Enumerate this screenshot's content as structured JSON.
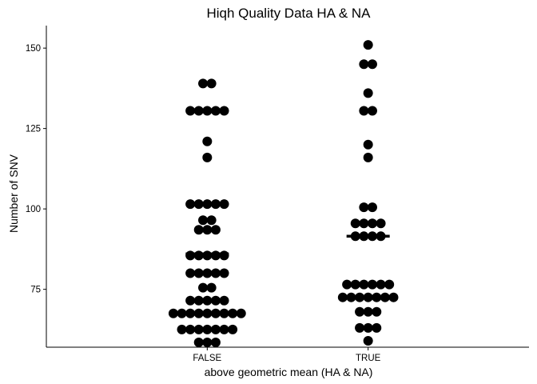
{
  "chart_data": {
    "type": "scatter",
    "title": "Hiqh Quality Data HA & NA",
    "xlabel": "above geometric mean  (HA & NA)",
    "ylabel": "Number of SNV",
    "categories": [
      "FALSE",
      "TRUE"
    ],
    "y_ticks": [
      75,
      100,
      125,
      150
    ],
    "ylim": [
      57,
      157
    ],
    "grid": false,
    "legend": "none",
    "point_color": "#000000",
    "groups": [
      {
        "category": "FALSE",
        "mean": 86,
        "bins": [
          {
            "y": 139,
            "count": 2
          },
          {
            "y": 130.5,
            "count": 5
          },
          {
            "y": 121,
            "count": 1
          },
          {
            "y": 116,
            "count": 1
          },
          {
            "y": 101.5,
            "count": 5
          },
          {
            "y": 96.5,
            "count": 2
          },
          {
            "y": 93.5,
            "count": 3
          },
          {
            "y": 85.5,
            "count": 5
          },
          {
            "y": 80,
            "count": 5
          },
          {
            "y": 75.5,
            "count": 2
          },
          {
            "y": 71.5,
            "count": 5
          },
          {
            "y": 67.5,
            "count": 9
          },
          {
            "y": 62.5,
            "count": 7
          },
          {
            "y": 58.5,
            "count": 3
          }
        ]
      },
      {
        "category": "TRUE",
        "mean": 91.5,
        "bins": [
          {
            "y": 151,
            "count": 1
          },
          {
            "y": 145,
            "count": 2
          },
          {
            "y": 136,
            "count": 1
          },
          {
            "y": 130.5,
            "count": 2
          },
          {
            "y": 120,
            "count": 1
          },
          {
            "y": 116,
            "count": 1
          },
          {
            "y": 100.5,
            "count": 2
          },
          {
            "y": 95.5,
            "count": 4
          },
          {
            "y": 91.5,
            "count": 4
          },
          {
            "y": 76.5,
            "count": 6
          },
          {
            "y": 72.5,
            "count": 7
          },
          {
            "y": 68,
            "count": 3
          },
          {
            "y": 63,
            "count": 3
          },
          {
            "y": 59,
            "count": 1
          }
        ]
      }
    ]
  }
}
